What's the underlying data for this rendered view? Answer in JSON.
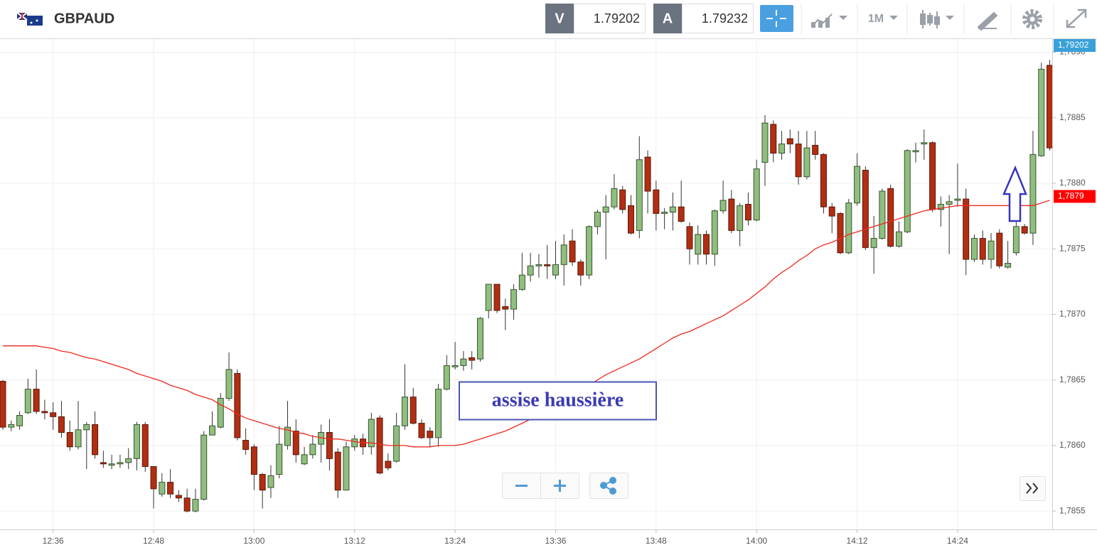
{
  "header": {
    "symbol": "GBPAUD",
    "bid_label": "V",
    "bid": "1.79202",
    "ask_label": "A",
    "ask": "1.79232",
    "timeframe": "1M"
  },
  "chart_data": {
    "type": "candlestick",
    "annotation": "assise haussière",
    "up_color": "#8fbf7f",
    "down_color": "#b22e12",
    "price_tag": "1,79202",
    "categories": [
      null,
      null,
      null,
      null,
      null,
      null,
      "12:36",
      null,
      null,
      null,
      null,
      null,
      null,
      null,
      null,
      null,
      null,
      null,
      "12:48",
      null,
      null,
      null,
      null,
      null,
      null,
      null,
      null,
      null,
      null,
      null,
      "13:00",
      null,
      null,
      null,
      null,
      null,
      null,
      null,
      null,
      null,
      null,
      null,
      "13:12",
      null,
      null,
      null,
      null,
      null,
      null,
      null,
      null,
      null,
      null,
      null,
      "13:24",
      null,
      null,
      null,
      null,
      null,
      null,
      null,
      null,
      null,
      null,
      null,
      "13:36",
      null,
      null,
      null,
      null,
      null,
      null,
      null,
      null,
      null,
      null,
      null,
      "13:48",
      null,
      null,
      null,
      null,
      null,
      null,
      null,
      null,
      null,
      null,
      null,
      "14:00",
      null,
      null,
      null,
      null,
      null,
      null,
      null,
      null,
      null,
      null,
      null,
      "14:12",
      null,
      null,
      null,
      null,
      null,
      null,
      null,
      null,
      null,
      null,
      null,
      "14:24",
      null,
      null,
      null,
      null,
      null,
      null,
      null,
      null,
      null,
      null,
      null
    ],
    "open": [
      1.78649,
      1.78614,
      1.78615,
      1.78625,
      1.78643,
      1.78626,
      1.78625,
      1.78622,
      1.7861,
      1.78599,
      1.78612,
      1.78616,
      1.78587,
      1.78585,
      1.78586,
      1.78587,
      1.7859,
      1.78616,
      1.78584,
      1.78563,
      1.78572,
      1.78562,
      1.7856,
      1.7855,
      1.78559,
      1.78608,
      1.78614,
      1.78636,
      1.78655,
      1.78604,
      1.78599,
      1.78578,
      1.78568,
      1.78578,
      1.786,
      1.78611,
      1.78586,
      1.78593,
      1.78601,
      1.7861,
      1.78595,
      1.78566,
      1.78599,
      1.78605,
      1.78599,
      1.78621,
      1.78588,
      1.78588,
      1.78615,
      1.78637,
      1.78617,
      1.78611,
      1.78606,
      1.78643,
      1.7866,
      1.78661,
      1.78667,
      1.78666,
      1.78703,
      1.78723,
      1.78706,
      1.78704,
      1.78719,
      1.7873,
      1.78737,
      1.78738,
      1.7873,
      1.78738,
      1.78756,
      1.7874,
      1.7873,
      1.78767,
      1.78778,
      1.78782,
      1.78795,
      1.78783,
      1.78764,
      1.7882,
      1.78795,
      1.78777,
      1.78778,
      1.78782,
      1.78767,
      1.78746,
      1.78761,
      1.78746,
      1.78779,
      1.78788,
      1.78764,
      1.78784,
      1.78772,
      1.78816,
      1.78845,
      1.78823,
      1.78834,
      1.7883,
      1.78805,
      1.78829,
      1.78822,
      1.78782,
      1.78777,
      1.78747,
      1.78785,
      1.7881,
      1.78751,
      1.78758,
      1.78796,
      1.78752,
      1.78763,
      1.78824,
      1.7883,
      1.78831,
      1.7878,
      1.78784,
      1.78787,
      1.78788,
      1.78742,
      1.78758,
      1.78742,
      1.78762,
      1.78736,
      1.78747,
      1.78767,
      1.78762,
      1.78821,
      1.7889
    ],
    "high": [
      1.7865,
      1.78619,
      1.78626,
      1.78651,
      1.78658,
      1.78635,
      1.78633,
      1.78634,
      1.78619,
      1.78634,
      1.78618,
      1.78626,
      1.78596,
      1.78593,
      1.78593,
      1.78598,
      1.78618,
      1.78618,
      1.78584,
      1.78579,
      1.78582,
      1.78566,
      1.78567,
      1.78567,
      1.78611,
      1.78626,
      1.7864,
      1.78671,
      1.78658,
      1.78613,
      1.78601,
      1.78579,
      1.78585,
      1.78615,
      1.78634,
      1.7862,
      1.78599,
      1.78608,
      1.78616,
      1.7862,
      1.78598,
      1.78603,
      1.78608,
      1.78609,
      1.78625,
      1.78623,
      1.78594,
      1.78625,
      1.78662,
      1.78644,
      1.7862,
      1.78614,
      1.78647,
      1.78669,
      1.78679,
      1.78672,
      1.78672,
      1.78698,
      1.78723,
      1.78723,
      1.78712,
      1.78723,
      1.78747,
      1.78747,
      1.78746,
      1.78753,
      1.78756,
      1.78761,
      1.78765,
      1.78742,
      1.78768,
      1.7878,
      1.78791,
      1.78807,
      1.78798,
      1.78791,
      1.78836,
      1.78825,
      1.78802,
      1.78781,
      1.78793,
      1.78802,
      1.7877,
      1.78768,
      1.78764,
      1.7878,
      1.78802,
      1.78795,
      1.78785,
      1.78793,
      1.78818,
      1.78852,
      1.78848,
      1.7884,
      1.78841,
      1.7884,
      1.7884,
      1.7884,
      1.78823,
      1.78785,
      1.78778,
      1.78788,
      1.78823,
      1.78813,
      1.78775,
      1.78796,
      1.78799,
      1.78771,
      1.78826,
      1.78831,
      1.78841,
      1.78832,
      1.7879,
      1.78791,
      1.78815,
      1.78796,
      1.78761,
      1.78764,
      1.78762,
      1.78765,
      1.78756,
      1.78772,
      1.78769,
      1.7884,
      1.78892,
      1.78894
    ],
    "low": [
      1.78612,
      1.78611,
      1.78612,
      1.78624,
      1.78624,
      1.7862,
      1.78612,
      1.78606,
      1.78596,
      1.78597,
      1.78582,
      1.7859,
      1.78583,
      1.78582,
      1.78583,
      1.78582,
      1.78581,
      1.7858,
      1.78552,
      1.78561,
      1.7856,
      1.78557,
      1.78549,
      1.78549,
      1.78558,
      1.78608,
      1.78613,
      1.78634,
      1.78604,
      1.78593,
      1.78566,
      1.78552,
      1.7856,
      1.78575,
      1.78597,
      1.78587,
      1.78585,
      1.7859,
      1.78587,
      1.78581,
      1.7856,
      1.78566,
      1.78596,
      1.78593,
      1.78593,
      1.78578,
      1.78581,
      1.78587,
      1.78612,
      1.78616,
      1.78605,
      1.78599,
      1.78599,
      1.78642,
      1.78658,
      1.78657,
      1.78658,
      1.78664,
      1.78697,
      1.78701,
      1.78688,
      1.78696,
      1.78718,
      1.78725,
      1.78728,
      1.78727,
      1.78727,
      1.78722,
      1.78737,
      1.78722,
      1.78727,
      1.78761,
      1.78742,
      1.7878,
      1.78777,
      1.78761,
      1.78758,
      1.78777,
      1.78764,
      1.78765,
      1.78764,
      1.7877,
      1.78738,
      1.78738,
      1.78738,
      1.78737,
      1.78777,
      1.78762,
      1.78752,
      1.78768,
      1.78771,
      1.78798,
      1.78816,
      1.78818,
      1.78823,
      1.78799,
      1.78803,
      1.78818,
      1.78777,
      1.78762,
      1.78746,
      1.78746,
      1.78783,
      1.78749,
      1.78731,
      1.78757,
      1.78751,
      1.78751,
      1.78762,
      1.78816,
      1.78818,
      1.78778,
      1.78767,
      1.78746,
      1.78782,
      1.7873,
      1.7874,
      1.78738,
      1.78735,
      1.78735,
      1.78735,
      1.78745,
      1.78761,
      1.78753,
      1.7882,
      1.78825
    ],
    "close": [
      1.78614,
      1.78616,
      1.78623,
      1.78643,
      1.78626,
      1.78625,
      1.78622,
      1.7861,
      1.78599,
      1.78612,
      1.78616,
      1.78593,
      1.78586,
      1.78586,
      1.78587,
      1.7859,
      1.78616,
      1.78584,
      1.78567,
      1.78572,
      1.78563,
      1.7856,
      1.7855,
      1.78559,
      1.78608,
      1.78615,
      1.78636,
      1.78658,
      1.78606,
      1.78597,
      1.78578,
      1.78566,
      1.78577,
      1.78601,
      1.78614,
      1.78593,
      1.78593,
      1.78601,
      1.7861,
      1.7859,
      1.78566,
      1.78599,
      1.78605,
      1.78599,
      1.7862,
      1.78579,
      1.78583,
      1.78615,
      1.78637,
      1.78617,
      1.78606,
      1.78606,
      1.78643,
      1.78661,
      1.78661,
      1.78666,
      1.78665,
      1.78697,
      1.78723,
      1.78703,
      1.78704,
      1.78719,
      1.7873,
      1.78737,
      1.78738,
      1.78737,
      1.78738,
      1.78753,
      1.7874,
      1.7873,
      1.78767,
      1.78778,
      1.78782,
      1.78796,
      1.7878,
      1.78762,
      1.78818,
      1.78794,
      1.78777,
      1.78778,
      1.78782,
      1.78771,
      1.7875,
      1.78761,
      1.78746,
      1.78779,
      1.78787,
      1.78764,
      1.78783,
      1.78772,
      1.78811,
      1.78846,
      1.78823,
      1.7883,
      1.7883,
      1.78805,
      1.78827,
      1.78822,
      1.78782,
      1.78775,
      1.78747,
      1.78785,
      1.78813,
      1.78751,
      1.78758,
      1.78794,
      1.78752,
      1.78763,
      1.78825,
      1.78825,
      1.78831,
      1.7878,
      1.78784,
      1.78786,
      1.78788,
      1.78742,
      1.78758,
      1.78742,
      1.78756,
      1.78737,
      1.78739,
      1.78767,
      1.78762,
      1.78822,
      1.78887,
      1.78827
    ],
    "ma": {
      "color": "#f0281e",
      "values": [
        1.78676,
        1.78676,
        1.78676,
        1.78676,
        1.78676,
        1.78675,
        1.78674,
        1.78672,
        1.78671,
        1.78669,
        1.78667,
        1.78666,
        1.78664,
        1.78662,
        1.7866,
        1.78658,
        1.78655,
        1.78653,
        1.78651,
        1.78649,
        1.78646,
        1.78644,
        1.78642,
        1.78639,
        1.78637,
        1.78635,
        1.78631,
        1.78628,
        1.78624,
        1.78621,
        1.78619,
        1.78617,
        1.78615,
        1.78613,
        1.78612,
        1.7861,
        1.78609,
        1.78607,
        1.78606,
        1.78605,
        1.78605,
        1.78604,
        1.78603,
        1.78602,
        1.78602,
        1.78601,
        1.786,
        1.786,
        1.786,
        1.78599,
        1.78599,
        1.78599,
        1.786,
        1.786,
        1.786,
        1.78601,
        1.78603,
        1.78605,
        1.78607,
        1.78609,
        1.78611,
        1.78614,
        1.78617,
        1.7862,
        1.78623,
        1.78627,
        1.7863,
        1.78634,
        1.78638,
        1.78642,
        1.78646,
        1.7865,
        1.78654,
        1.78657,
        1.7866,
        1.78663,
        1.78666,
        1.7867,
        1.78674,
        1.78678,
        1.78682,
        1.78685,
        1.78687,
        1.7869,
        1.78693,
        1.78696,
        1.78699,
        1.78703,
        1.78707,
        1.78711,
        1.78716,
        1.78721,
        1.78727,
        1.78732,
        1.78736,
        1.78741,
        1.78745,
        1.7875,
        1.78753,
        1.78755,
        1.78758,
        1.78761,
        1.78763,
        1.78765,
        1.78767,
        1.78769,
        1.78771,
        1.78773,
        1.78775,
        1.78777,
        1.78779,
        1.7878,
        1.78781,
        1.78782,
        1.78783,
        1.78783,
        1.78783,
        1.78783,
        1.78783,
        1.78783,
        1.78783,
        1.78783,
        1.78783,
        1.78783,
        1.78785,
        1.78787
      ],
      "last_label": {
        "value": 1.7879,
        "label": "1,7879"
      }
    },
    "ylim": [
      1.78536,
      1.7891
    ],
    "yticks": [
      {
        "value": 1.7855,
        "label": "1,7855"
      },
      {
        "value": 1.786,
        "label": "1,7860"
      },
      {
        "value": 1.7865,
        "label": "1,7865"
      },
      {
        "value": 1.787,
        "label": "1,7870"
      },
      {
        "value": 1.7875,
        "label": "1,7875"
      },
      {
        "value": 1.788,
        "label": "1,7880"
      },
      {
        "value": 1.7885,
        "label": "1,7885"
      },
      {
        "value": 1.789,
        "label": "1,7890"
      }
    ],
    "grid": true
  }
}
